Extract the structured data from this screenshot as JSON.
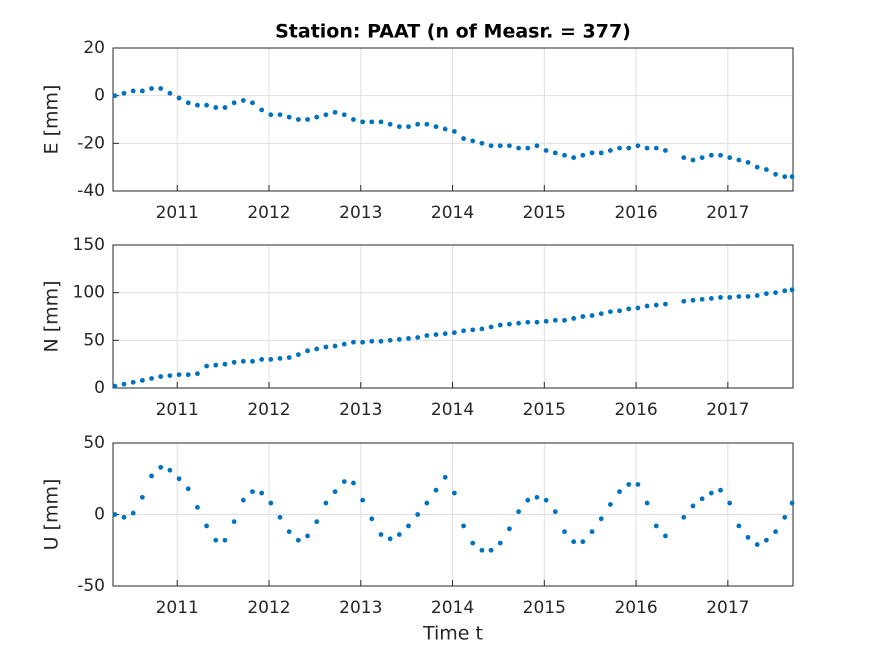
{
  "chart_data": [
    {
      "type": "scatter",
      "title": "Station: PAAT (n of Measr. = 377)",
      "ylabel": "E [mm]",
      "color": "#0072bd",
      "grid": true,
      "xlim": [
        2010.3,
        2017.71
      ],
      "xticks": [
        2011,
        2012,
        2013,
        2014,
        2015,
        2016,
        2017
      ],
      "ylim": [
        -40,
        20
      ],
      "yticks": [
        -40,
        -20,
        0,
        20
      ],
      "x": [
        2010.32,
        2010.42,
        2010.52,
        2010.62,
        2010.72,
        2010.82,
        2010.92,
        2011.02,
        2011.12,
        2011.22,
        2011.32,
        2011.42,
        2011.52,
        2011.62,
        2011.72,
        2011.82,
        2011.92,
        2012.02,
        2012.12,
        2012.22,
        2012.32,
        2012.42,
        2012.52,
        2012.62,
        2012.72,
        2012.82,
        2012.92,
        2013.02,
        2013.12,
        2013.22,
        2013.32,
        2013.42,
        2013.52,
        2013.62,
        2013.72,
        2013.82,
        2013.92,
        2014.02,
        2014.12,
        2014.22,
        2014.32,
        2014.42,
        2014.52,
        2014.62,
        2014.72,
        2014.82,
        2014.92,
        2015.02,
        2015.12,
        2015.22,
        2015.32,
        2015.42,
        2015.52,
        2015.62,
        2015.72,
        2015.82,
        2015.92,
        2016.02,
        2016.12,
        2016.22,
        2016.32,
        2016.52,
        2016.62,
        2016.72,
        2016.82,
        2016.92,
        2017.02,
        2017.12,
        2017.22,
        2017.32,
        2017.42,
        2017.52,
        2017.62,
        2017.7
      ],
      "values": [
        0,
        1,
        2,
        2,
        3,
        3,
        1,
        -1,
        -3,
        -4,
        -4,
        -5,
        -5,
        -3,
        -2,
        -3,
        -6,
        -8,
        -8,
        -9,
        -10,
        -10,
        -9,
        -8,
        -7,
        -8,
        -10,
        -11,
        -11,
        -11,
        -12,
        -13,
        -13,
        -12,
        -12,
        -13,
        -14,
        -15,
        -18,
        -19,
        -20,
        -21,
        -21,
        -21,
        -22,
        -22,
        -21,
        -23,
        -24,
        -25,
        -26,
        -25,
        -24,
        -24,
        -23,
        -22,
        -22,
        -21,
        -22,
        -22,
        -23,
        -26,
        -27,
        -26,
        -25,
        -25,
        -26,
        -27,
        -28,
        -30,
        -31,
        -33,
        -34,
        -34
      ]
    },
    {
      "type": "scatter",
      "ylabel": "N [mm]",
      "color": "#0072bd",
      "grid": true,
      "xlim": [
        2010.3,
        2017.71
      ],
      "xticks": [
        2011,
        2012,
        2013,
        2014,
        2015,
        2016,
        2017
      ],
      "ylim": [
        0,
        150
      ],
      "yticks": [
        0,
        50,
        100,
        150
      ],
      "x": [
        2010.32,
        2010.42,
        2010.52,
        2010.62,
        2010.72,
        2010.82,
        2010.92,
        2011.02,
        2011.12,
        2011.22,
        2011.32,
        2011.42,
        2011.52,
        2011.62,
        2011.72,
        2011.82,
        2011.92,
        2012.02,
        2012.12,
        2012.22,
        2012.32,
        2012.42,
        2012.52,
        2012.62,
        2012.72,
        2012.82,
        2012.92,
        2013.02,
        2013.12,
        2013.22,
        2013.32,
        2013.42,
        2013.52,
        2013.62,
        2013.72,
        2013.82,
        2013.92,
        2014.02,
        2014.12,
        2014.22,
        2014.32,
        2014.42,
        2014.52,
        2014.62,
        2014.72,
        2014.82,
        2014.92,
        2015.02,
        2015.12,
        2015.22,
        2015.32,
        2015.42,
        2015.52,
        2015.62,
        2015.72,
        2015.82,
        2015.92,
        2016.02,
        2016.12,
        2016.22,
        2016.32,
        2016.52,
        2016.62,
        2016.72,
        2016.82,
        2016.92,
        2017.02,
        2017.12,
        2017.22,
        2017.32,
        2017.42,
        2017.52,
        2017.62,
        2017.7
      ],
      "values": [
        2,
        4,
        6,
        8,
        10,
        12,
        13,
        14,
        14,
        15,
        23,
        24,
        25,
        27,
        28,
        28,
        30,
        30,
        31,
        32,
        35,
        39,
        41,
        43,
        44,
        46,
        48,
        48,
        49,
        49,
        50,
        51,
        52,
        53,
        55,
        56,
        57,
        58,
        60,
        61,
        62,
        64,
        66,
        67,
        68,
        69,
        69,
        70,
        71,
        71,
        73,
        75,
        76,
        78,
        80,
        81,
        83,
        84,
        86,
        87,
        88,
        91,
        92,
        93,
        94,
        95,
        95,
        96,
        96,
        97,
        99,
        100,
        102,
        103
      ]
    },
    {
      "type": "scatter",
      "ylabel": "U [mm]",
      "xlabel": "Time t",
      "color": "#0072bd",
      "grid": true,
      "xlim": [
        2010.3,
        2017.71
      ],
      "xticks": [
        2011,
        2012,
        2013,
        2014,
        2015,
        2016,
        2017
      ],
      "ylim": [
        -50,
        50
      ],
      "yticks": [
        -50,
        0,
        50
      ],
      "x": [
        2010.32,
        2010.42,
        2010.52,
        2010.62,
        2010.72,
        2010.82,
        2010.92,
        2011.02,
        2011.12,
        2011.22,
        2011.32,
        2011.42,
        2011.52,
        2011.62,
        2011.72,
        2011.82,
        2011.92,
        2012.02,
        2012.12,
        2012.22,
        2012.32,
        2012.42,
        2012.52,
        2012.62,
        2012.72,
        2012.82,
        2012.92,
        2013.02,
        2013.12,
        2013.22,
        2013.32,
        2013.42,
        2013.52,
        2013.62,
        2013.72,
        2013.82,
        2013.92,
        2014.02,
        2014.12,
        2014.22,
        2014.32,
        2014.42,
        2014.52,
        2014.62,
        2014.72,
        2014.82,
        2014.92,
        2015.02,
        2015.12,
        2015.22,
        2015.32,
        2015.42,
        2015.52,
        2015.62,
        2015.72,
        2015.82,
        2015.92,
        2016.02,
        2016.12,
        2016.22,
        2016.32,
        2016.52,
        2016.62,
        2016.72,
        2016.82,
        2016.92,
        2017.02,
        2017.12,
        2017.22,
        2017.32,
        2017.42,
        2017.52,
        2017.62,
        2017.7
      ],
      "values": [
        0,
        -2,
        1,
        12,
        27,
        33,
        31,
        25,
        18,
        5,
        -8,
        -18,
        -18,
        -5,
        10,
        16,
        15,
        8,
        -2,
        -12,
        -18,
        -15,
        -5,
        8,
        16,
        23,
        22,
        10,
        -3,
        -14,
        -17,
        -14,
        -8,
        0,
        8,
        17,
        26,
        15,
        -8,
        -20,
        -25,
        -25,
        -20,
        -10,
        2,
        10,
        12,
        10,
        2,
        -12,
        -19,
        -19,
        -12,
        -3,
        7,
        16,
        21,
        21,
        8,
        -8,
        -15,
        -2,
        6,
        11,
        15,
        17,
        8,
        -8,
        -16,
        -21,
        -18,
        -12,
        -2,
        8
      ]
    }
  ]
}
